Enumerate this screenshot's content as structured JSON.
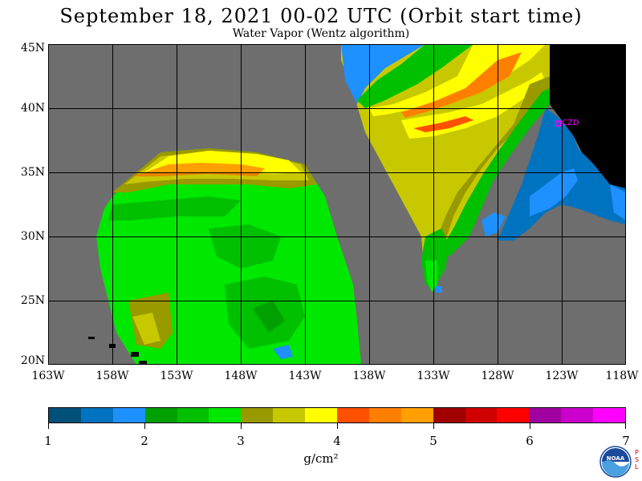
{
  "title": "September 18, 2021  00-02 UTC  (Orbit start time)",
  "subtitle": "Water Vapor (Wentz algorithm)",
  "lat_labels": [
    "45N",
    "40N",
    "35N",
    "30N",
    "25N",
    "20N"
  ],
  "lon_labels": [
    "163W",
    "158W",
    "153W",
    "148W",
    "143W",
    "138W",
    "133W",
    "128W",
    "123W",
    "118W"
  ],
  "station_label": "CZD",
  "colorbar": {
    "labels": [
      "1",
      "2",
      "3",
      "4",
      "5",
      "6",
      "7"
    ],
    "units": "g/cm²",
    "colors": [
      "#00507a",
      "#0073c0",
      "#1e90ff",
      "#00a000",
      "#00c000",
      "#00e800",
      "#999900",
      "#c8c800",
      "#ffff00",
      "#ff5000",
      "#ff8000",
      "#ffa000",
      "#a00000",
      "#d00000",
      "#ff0000",
      "#a000a0",
      "#cc00cc",
      "#ff00ff"
    ]
  },
  "logo": {
    "name": "NOAA",
    "text": "NOAA",
    "side_text": "PSL"
  },
  "colors": {
    "no_data": "#6e6e6e",
    "land": "#000000",
    "grid": "#000000"
  }
}
